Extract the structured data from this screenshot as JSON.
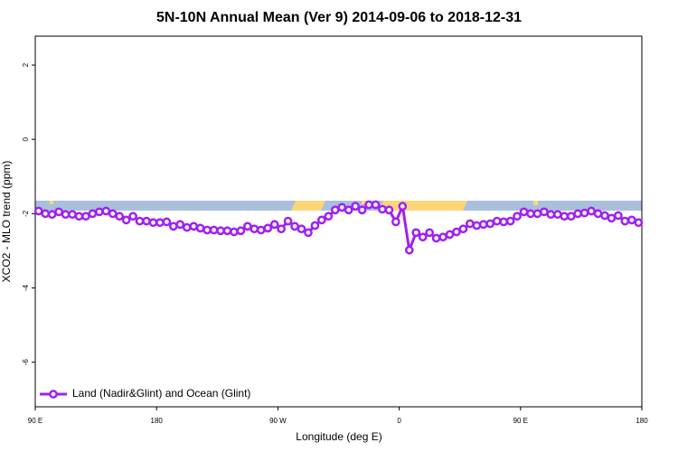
{
  "chart_data": {
    "type": "line",
    "title": "5N-10N Annual Mean (Ver 9)   2014-09-06 to 2018-12-31",
    "xlabel": "Longitude (deg E)",
    "ylabel": "XCO2 - MLO trend (ppm)",
    "xlim": [
      90,
      540
    ],
    "ylim": [
      -7.2,
      2.78
    ],
    "xticks": [
      {
        "value": 90,
        "label": "90 E"
      },
      180,
      {
        "value": 270,
        "label": "90 W"
      },
      {
        "value": 360,
        "label": "0"
      },
      {
        "value": 450,
        "label": "90 E"
      },
      {
        "value": 540,
        "label": "180"
      }
    ],
    "yticks": [
      -6,
      -4,
      -2,
      0,
      2
    ],
    "legend": "bottom-left",
    "x": [
      92.5,
      97.5,
      102.5,
      107.5,
      112.5,
      117.5,
      122.5,
      127.5,
      132.5,
      137.5,
      142.5,
      147.5,
      152.5,
      157.5,
      162.5,
      167.5,
      172.5,
      177.5,
      182.5,
      187.5,
      192.5,
      197.5,
      202.5,
      207.5,
      212.5,
      217.5,
      222.5,
      227.5,
      232.5,
      237.5,
      242.5,
      247.5,
      252.5,
      257.5,
      262.5,
      267.5,
      272.5,
      277.5,
      282.5,
      287.5,
      292.5,
      297.5,
      302.5,
      307.5,
      312.5,
      317.5,
      322.5,
      327.5,
      332.5,
      337.5,
      342.5,
      347.5,
      352.5,
      357.5,
      362.5,
      367.5,
      372.5,
      377.5,
      382.5,
      387.5,
      392.5,
      397.5,
      402.5,
      407.5,
      412.5,
      417.5,
      422.5,
      427.5,
      432.5,
      437.5,
      442.5,
      447.5,
      452.5,
      457.5,
      462.5,
      467.5,
      472.5,
      477.5,
      482.5,
      487.5,
      492.5,
      497.5,
      502.5,
      507.5,
      512.5,
      517.5,
      522.5,
      527.5,
      532.5,
      537.5
    ],
    "series": [
      {
        "name": "Land (Nadir&Glint) and Ocean (Glint)",
        "color": "#a020f0",
        "values": [
          -1.93,
          -2.0,
          -2.02,
          -1.95,
          -2.02,
          -2.02,
          -2.07,
          -2.07,
          -2.0,
          -1.95,
          -1.93,
          -2.0,
          -2.07,
          -2.17,
          -2.07,
          -2.2,
          -2.2,
          -2.24,
          -2.24,
          -2.22,
          -2.34,
          -2.29,
          -2.37,
          -2.34,
          -2.39,
          -2.44,
          -2.44,
          -2.46,
          -2.46,
          -2.49,
          -2.46,
          -2.34,
          -2.41,
          -2.44,
          -2.39,
          -2.29,
          -2.41,
          -2.2,
          -2.34,
          -2.41,
          -2.51,
          -2.32,
          -2.17,
          -2.07,
          -1.9,
          -1.83,
          -1.9,
          -1.8,
          -1.9,
          -1.76,
          -1.76,
          -1.88,
          -1.9,
          -2.22,
          -1.8,
          -2.98,
          -2.51,
          -2.63,
          -2.51,
          -2.66,
          -2.63,
          -2.56,
          -2.49,
          -2.41,
          -2.27,
          -2.32,
          -2.29,
          -2.27,
          -2.2,
          -2.22,
          -2.2,
          -2.07,
          -1.95,
          -2.0,
          -2.0,
          -1.95,
          -2.02,
          -2.02,
          -2.07,
          -2.07,
          -2.0,
          -1.98,
          -1.93,
          -2.0,
          -2.05,
          -2.12,
          -2.05,
          -2.2,
          -2.17,
          -2.24
        ]
      }
    ]
  }
}
